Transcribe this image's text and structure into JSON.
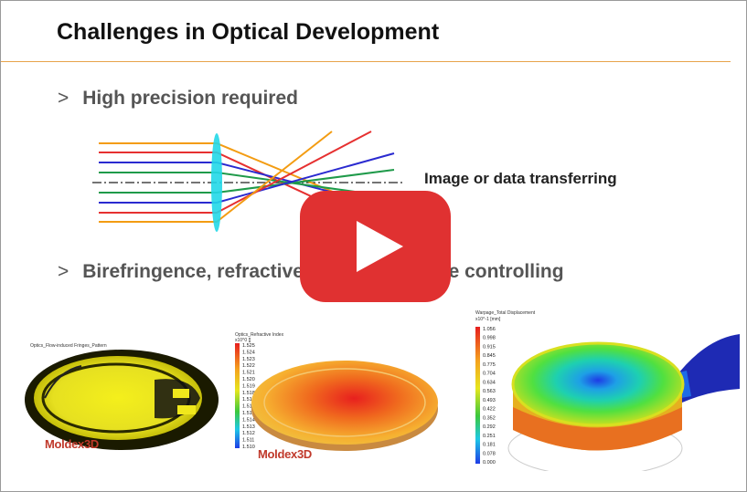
{
  "slide": {
    "title": "Challenges in Optical Development",
    "bullets": [
      {
        "marker": ">",
        "text": "High precision required"
      },
      {
        "marker": ">",
        "text": "Birefringence, refractive index and shape controlling"
      }
    ],
    "diagram_label": "Image or data transferring"
  },
  "panels": [
    {
      "title": "Optics_Flow-induced Fringes_Pattern",
      "brand": "Moldex3D"
    },
    {
      "title": "Optics_Refractive Index",
      "unit": "x10^0 []",
      "brand": "Moldex3D",
      "legend": [
        "1.525",
        "1.524",
        "1.523",
        "1.522",
        "1.521",
        "1.520",
        "1.519",
        "1.518",
        "1.517",
        "1.516",
        "1.515",
        "1.514",
        "1.513",
        "1.512",
        "1.511",
        "1.510"
      ]
    },
    {
      "title": "Warpage_Total Displacement",
      "unit": "x10^-1 [mm]",
      "legend": [
        "1.056",
        "0.998",
        "0.915",
        "0.845",
        "0.775",
        "0.704",
        "0.634",
        "0.563",
        "0.493",
        "0.422",
        "0.352",
        "0.292",
        "0.251",
        "0.181",
        "0.078",
        "0.000"
      ]
    }
  ],
  "colors": {
    "accent_rule": "#e7a44a",
    "play": "#e03131"
  },
  "video": {
    "play_icon": "play-icon"
  }
}
